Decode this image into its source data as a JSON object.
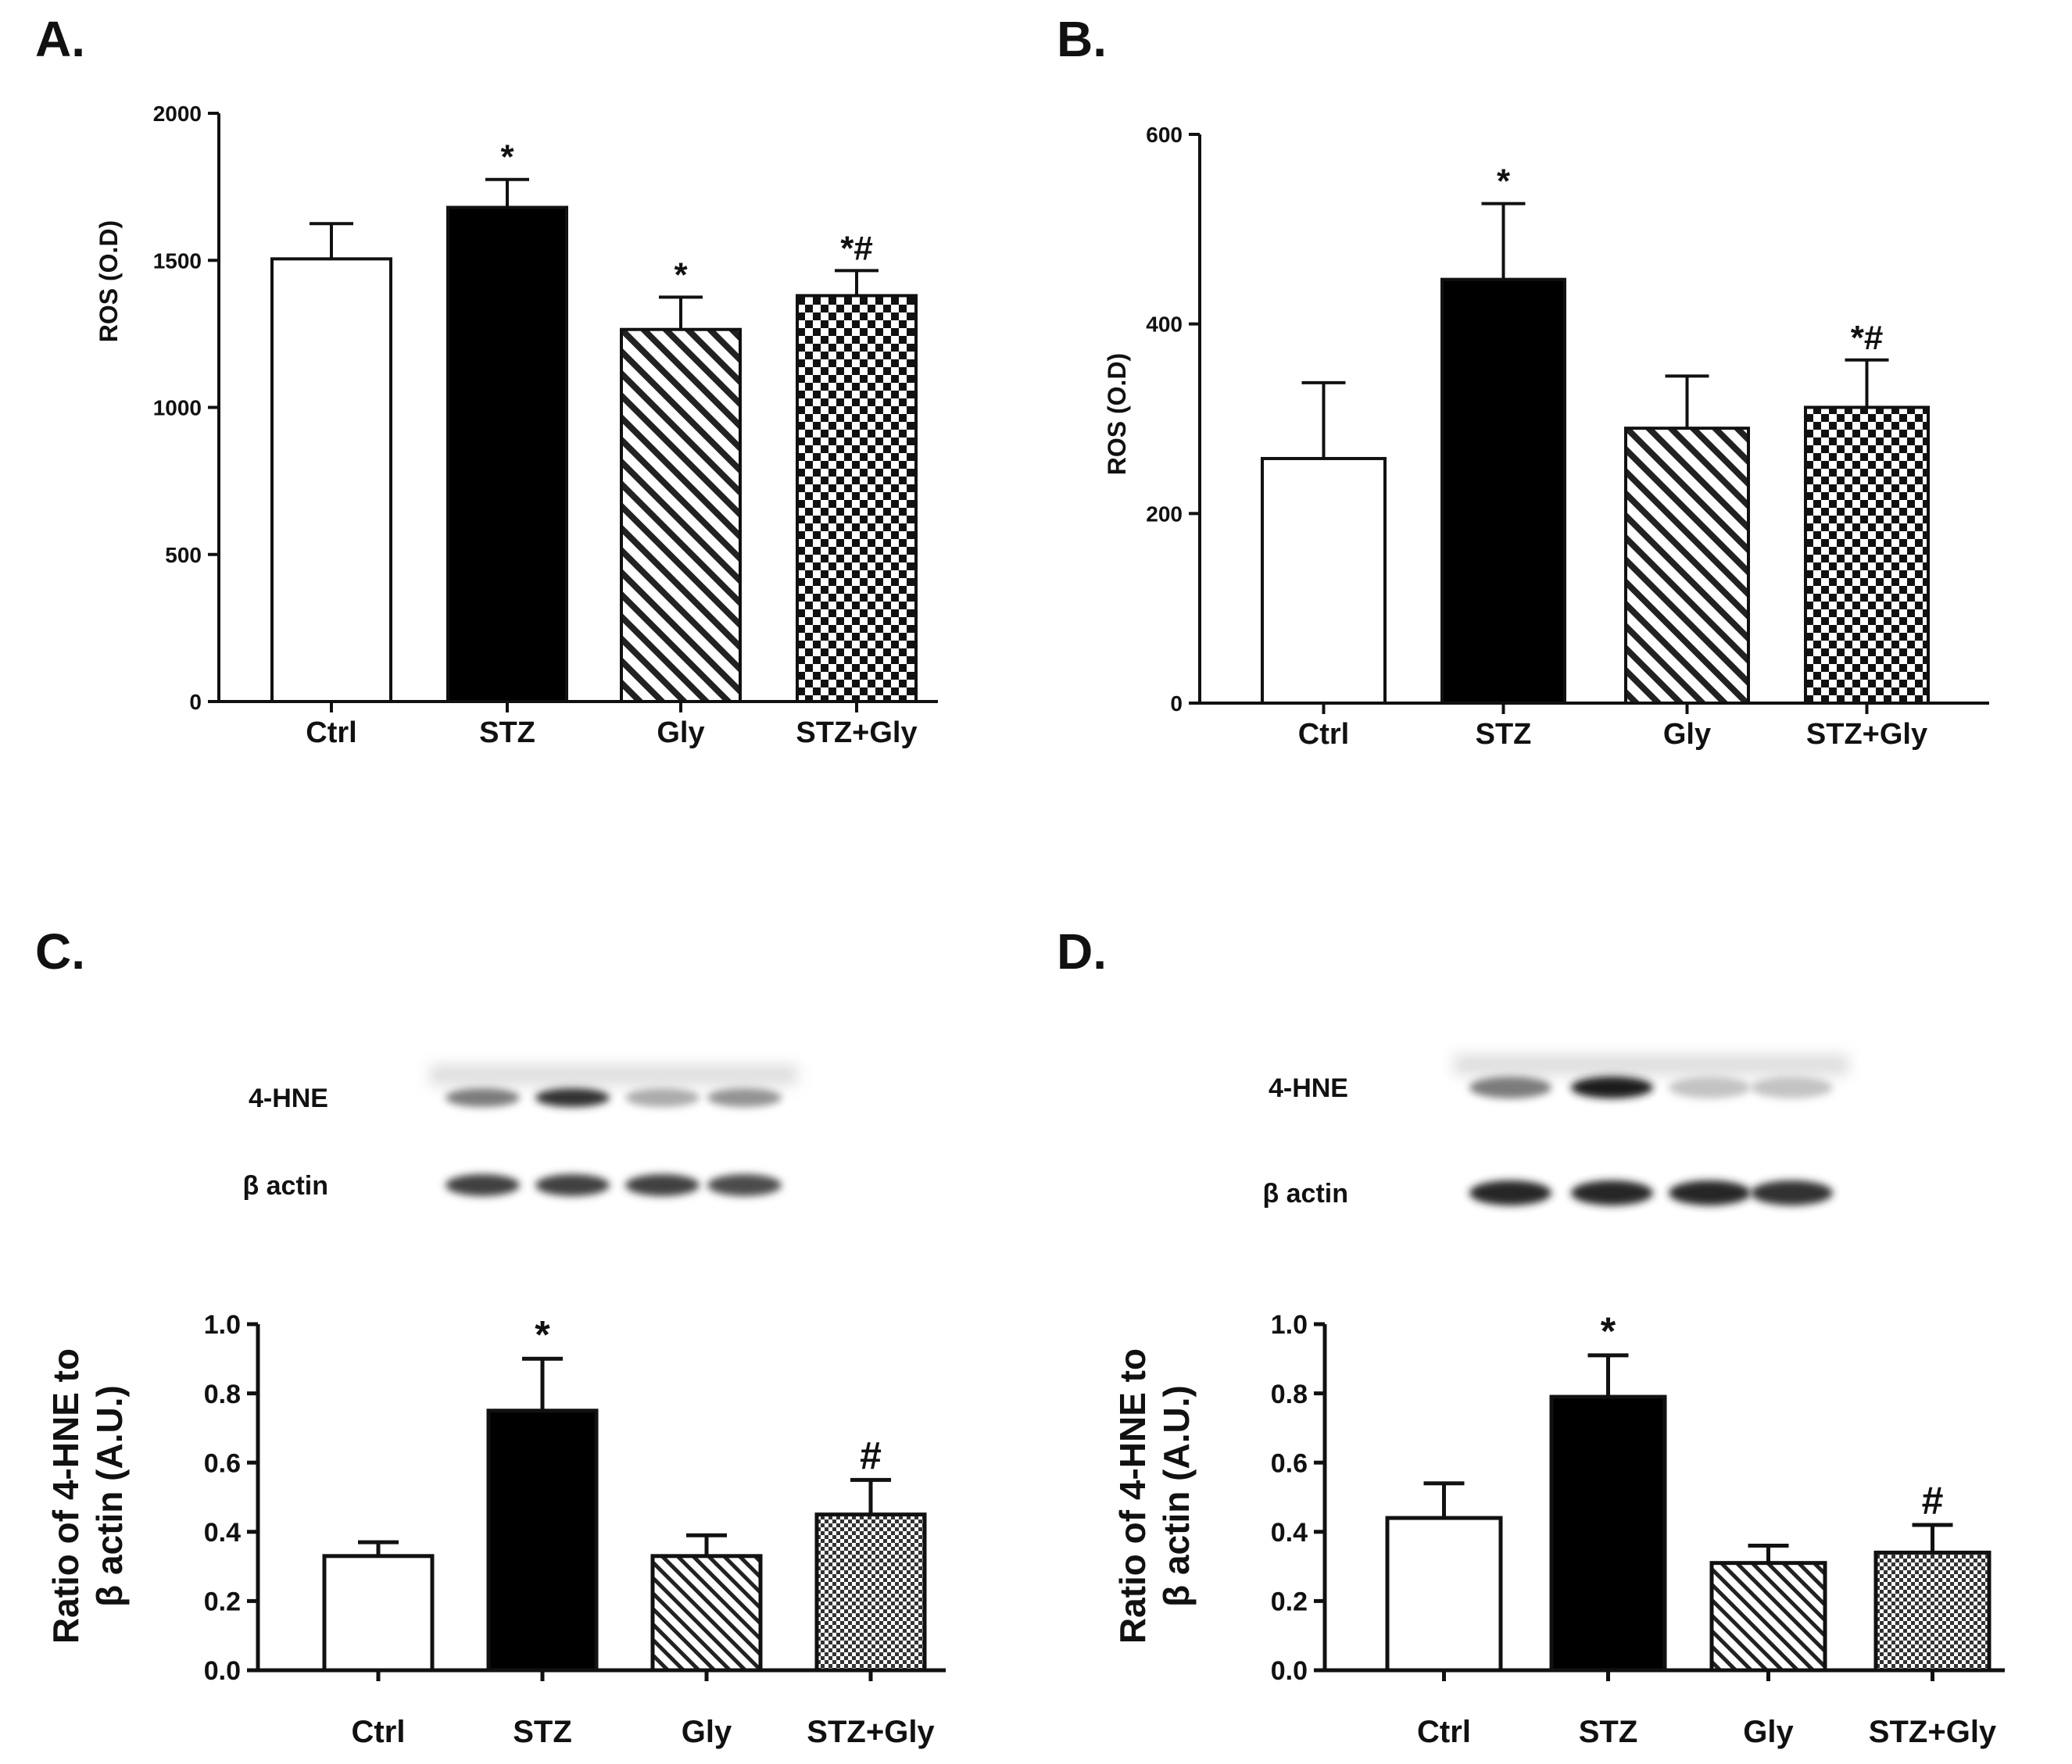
{
  "chart_data": [
    {
      "panel": "A.",
      "type": "bar",
      "categories": [
        "Ctrl",
        "STZ",
        "Gly",
        "STZ+Gly"
      ],
      "values": [
        1505,
        1680,
        1265,
        1380
      ],
      "errors": [
        120,
        95,
        110,
        85
      ],
      "significance": [
        "",
        "*",
        "*",
        "*#"
      ],
      "ylabel": "ROS  (O.D)",
      "ylim": [
        0,
        2000
      ],
      "yticks": [
        "0",
        "500",
        "1000",
        "1500",
        "2000"
      ],
      "fills": [
        "white",
        "black",
        "hatch",
        "checker"
      ]
    },
    {
      "panel": "B.",
      "type": "bar",
      "categories": [
        "Ctrl",
        "STZ",
        "Gly",
        "STZ+Gly"
      ],
      "values": [
        258,
        447,
        290,
        312
      ],
      "errors": [
        80,
        80,
        55,
        50
      ],
      "significance": [
        "",
        "*",
        "",
        "*#"
      ],
      "ylabel": "ROS  (O.D)",
      "ylim": [
        0,
        600
      ],
      "yticks": [
        "0",
        "200",
        "400",
        "600"
      ],
      "fills": [
        "white",
        "black",
        "hatch",
        "checker"
      ]
    },
    {
      "panel": "C.",
      "type": "bar",
      "categories": [
        "Ctrl",
        "STZ",
        "Gly",
        "STZ+Gly"
      ],
      "values": [
        0.33,
        0.75,
        0.33,
        0.45
      ],
      "errors": [
        0.04,
        0.15,
        0.06,
        0.1
      ],
      "significance": [
        "",
        "*",
        "",
        "#"
      ],
      "ylabel_lines": [
        "Ratio of 4-HNE  to",
        "β  actin (A.U.)"
      ],
      "ylim": [
        0,
        1.0
      ],
      "yticks": [
        "0.0",
        "0.2",
        "0.4",
        "0.6",
        "0.8",
        "1.0"
      ],
      "fills": [
        "white",
        "black",
        "hatch",
        "checker"
      ],
      "blot_labels": [
        "4-HNE",
        "β  actin"
      ]
    },
    {
      "panel": "D.",
      "type": "bar",
      "categories": [
        "Ctrl",
        "STZ",
        "Gly",
        "STZ+Gly"
      ],
      "values": [
        0.44,
        0.79,
        0.31,
        0.34
      ],
      "errors": [
        0.1,
        0.12,
        0.05,
        0.08
      ],
      "significance": [
        "",
        "*",
        "",
        "#"
      ],
      "ylabel_lines": [
        "Ratio of 4-HNE  to",
        "β  actin (A.U.)"
      ],
      "ylim": [
        0,
        1.0
      ],
      "yticks": [
        "0.0",
        "0.2",
        "0.4",
        "0.6",
        "0.8",
        "1.0"
      ],
      "fills": [
        "white",
        "black",
        "hatch",
        "checker"
      ],
      "blot_labels": [
        "4-HNE",
        "β  actin"
      ]
    }
  ],
  "blots": [
    {
      "hne": [
        0.55,
        0.85,
        0.35,
        0.45
      ],
      "actin": [
        0.8,
        0.8,
        0.8,
        0.75
      ]
    },
    {
      "hne": [
        0.55,
        0.95,
        0.25,
        0.25
      ],
      "actin": [
        0.9,
        0.9,
        0.9,
        0.85
      ]
    }
  ]
}
